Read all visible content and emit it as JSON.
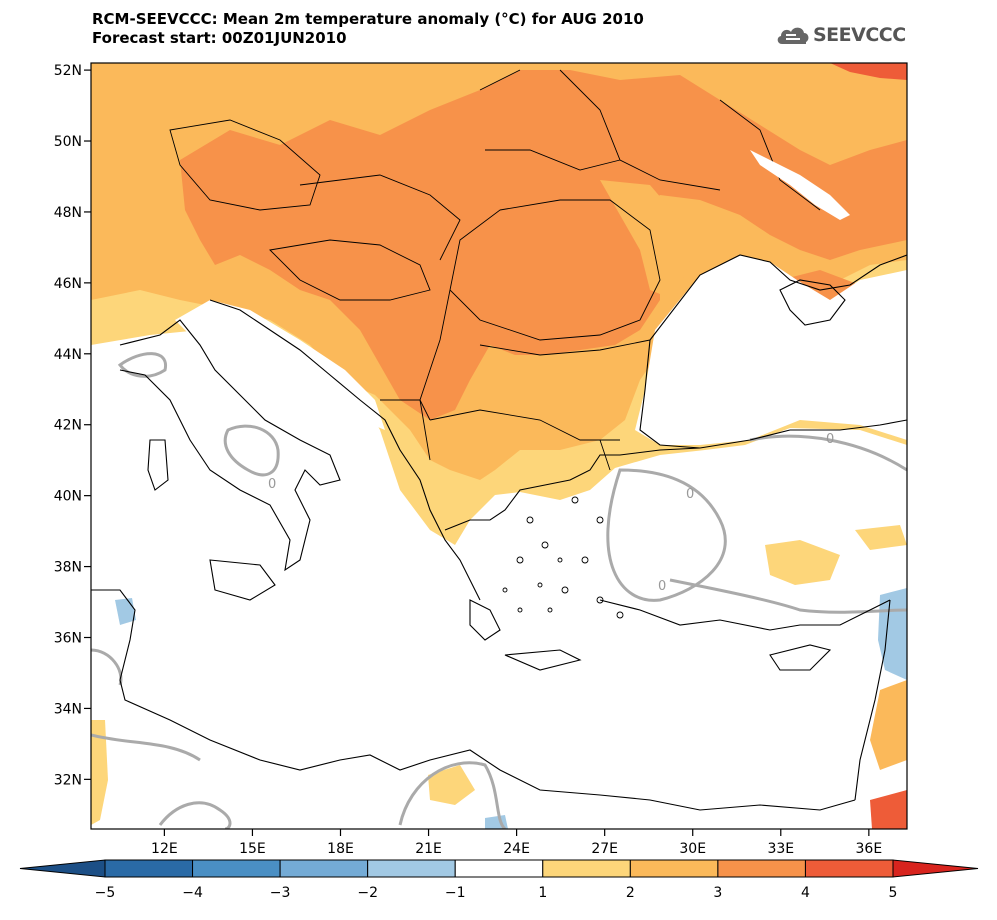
{
  "header": {
    "title": "RCM-SEEVCCC: Mean 2m temperature anomaly (°C) for AUG 2010",
    "subtitle": "Forecast start: 00Z01JUN2010"
  },
  "logo": {
    "text": "SEEVCCC",
    "icon": "cloud-logo-icon"
  },
  "map": {
    "lat_labels": [
      "52N",
      "50N",
      "48N",
      "46N",
      "44N",
      "42N",
      "40N",
      "38N",
      "36N",
      "34N",
      "32N"
    ],
    "lat_values": [
      52,
      50,
      48,
      46,
      44,
      42,
      40,
      38,
      36,
      34,
      32
    ],
    "lon_labels": [
      "12E",
      "15E",
      "18E",
      "21E",
      "24E",
      "27E",
      "30E",
      "33E",
      "36E"
    ],
    "lon_values": [
      12,
      15,
      18,
      21,
      24,
      27,
      30,
      33,
      36
    ],
    "lon_range": [
      9.5,
      37.3
    ],
    "lat_range": [
      30.6,
      52.2
    ],
    "contour_label": "0"
  },
  "colorbar": {
    "ticks": [
      "−5",
      "−4",
      "−3",
      "−2",
      "−1",
      "1",
      "2",
      "3",
      "4",
      "5"
    ],
    "colors": [
      "#2a6aa6",
      "#4a8fc4",
      "#74abd6",
      "#a2c9e4",
      "#ffffff",
      "#fdd67a",
      "#fbb95a",
      "#f7924a",
      "#ee5c38"
    ],
    "under_color": "#1c4f86",
    "over_color": "#d8241e"
  },
  "colors": {
    "warm_1_2": "#fdd67a",
    "warm_2_3": "#fbb95a",
    "warm_3_4": "#f7924a",
    "warm_4_5": "#ee5c38",
    "cool_1_2": "#a2c9e4",
    "zero_contour": "#aaaaaa"
  }
}
